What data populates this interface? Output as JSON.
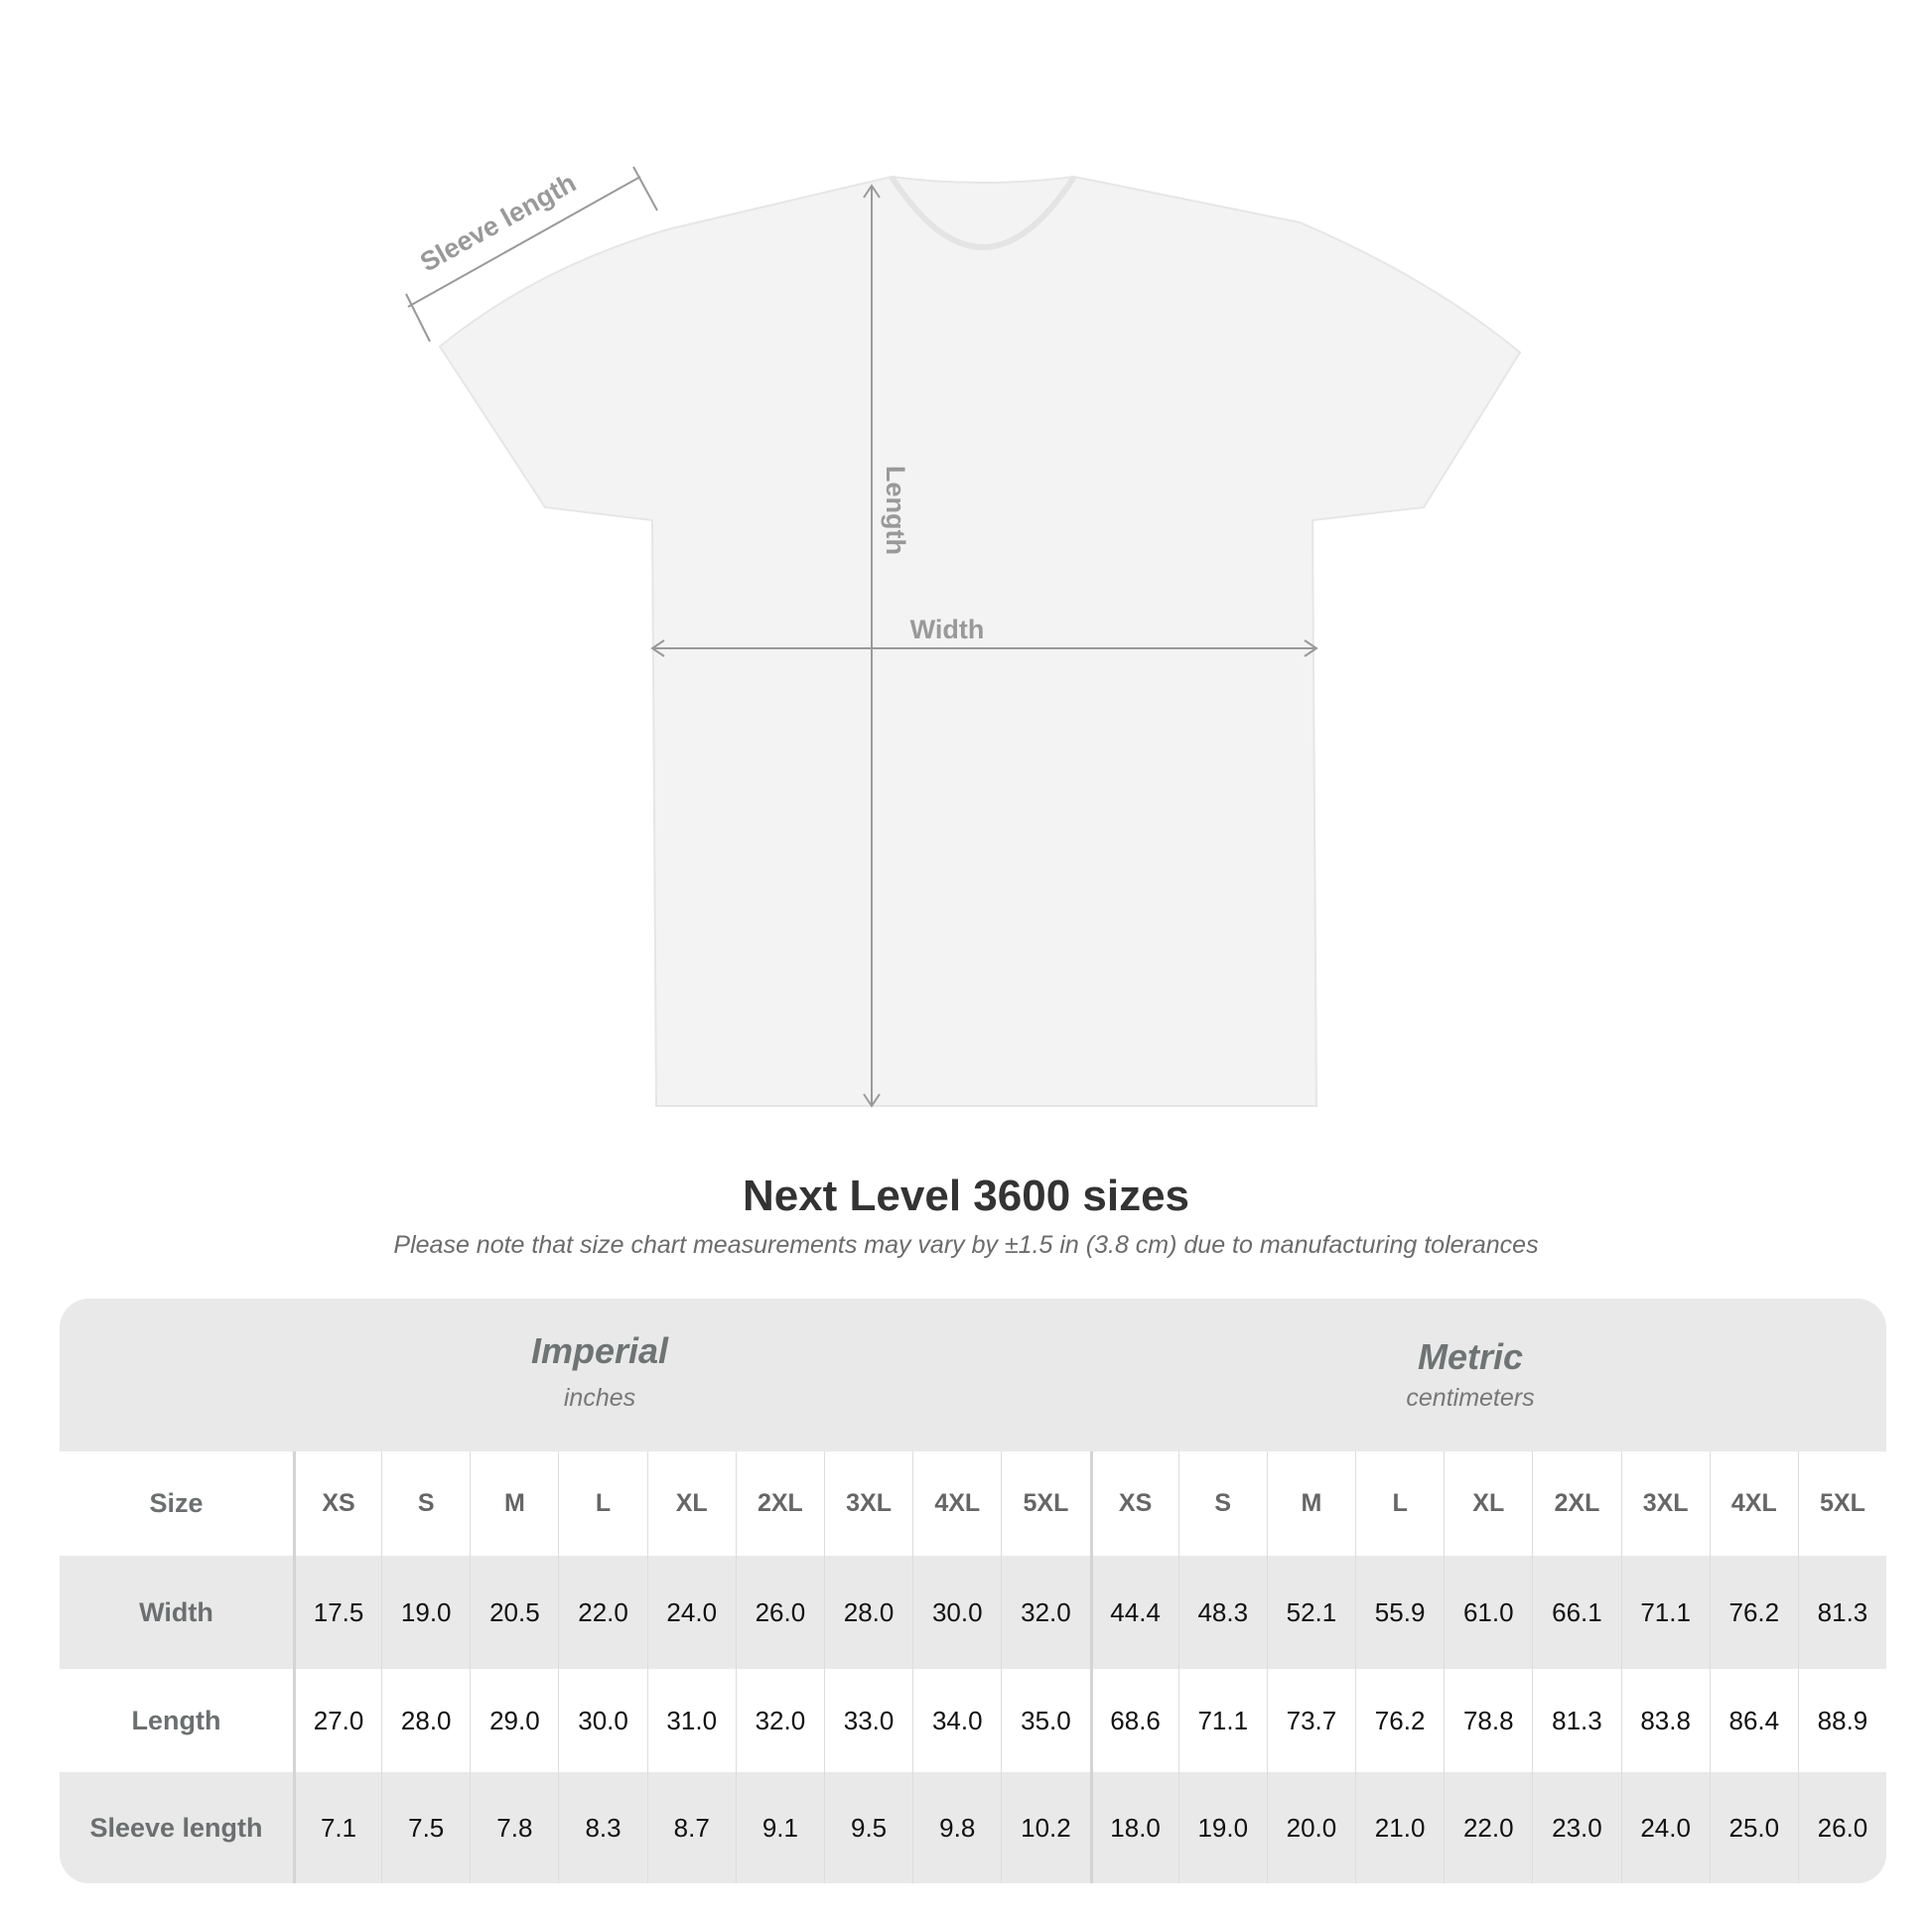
{
  "diagram": {
    "labels": {
      "sleeve": "Sleeve length",
      "length": "Length",
      "width": "Width"
    },
    "line_color": "#999999",
    "shirt_color": "#f3f3f3"
  },
  "title": "Next Level 3600 sizes",
  "subtitle": "Please note that size chart measurements may vary by ±1.5 in (3.8 cm) due to manufacturing tolerances",
  "table": {
    "imperial": {
      "name": "Imperial",
      "unit": "inches"
    },
    "metric": {
      "name": "Metric",
      "unit": "centimeters"
    },
    "size_label": "Size",
    "sizes": [
      "XS",
      "S",
      "M",
      "L",
      "XL",
      "2XL",
      "3XL",
      "4XL",
      "5XL"
    ],
    "rows": [
      {
        "label": "Width",
        "imperial": [
          "17.5",
          "19.0",
          "20.5",
          "22.0",
          "24.0",
          "26.0",
          "28.0",
          "30.0",
          "32.0"
        ],
        "metric": [
          "44.4",
          "48.3",
          "52.1",
          "55.9",
          "61.0",
          "66.1",
          "71.1",
          "76.2",
          "81.3"
        ]
      },
      {
        "label": "Length",
        "imperial": [
          "27.0",
          "28.0",
          "29.0",
          "30.0",
          "31.0",
          "32.0",
          "33.0",
          "34.0",
          "35.0"
        ],
        "metric": [
          "68.6",
          "71.1",
          "73.7",
          "76.2",
          "78.8",
          "81.3",
          "83.8",
          "86.4",
          "88.9"
        ]
      },
      {
        "label": "Sleeve length",
        "imperial": [
          "7.1",
          "7.5",
          "7.8",
          "8.3",
          "8.7",
          "9.1",
          "9.5",
          "9.8",
          "10.2"
        ],
        "metric": [
          "18.0",
          "19.0",
          "20.0",
          "21.0",
          "22.0",
          "23.0",
          "24.0",
          "25.0",
          "26.0"
        ]
      }
    ]
  }
}
